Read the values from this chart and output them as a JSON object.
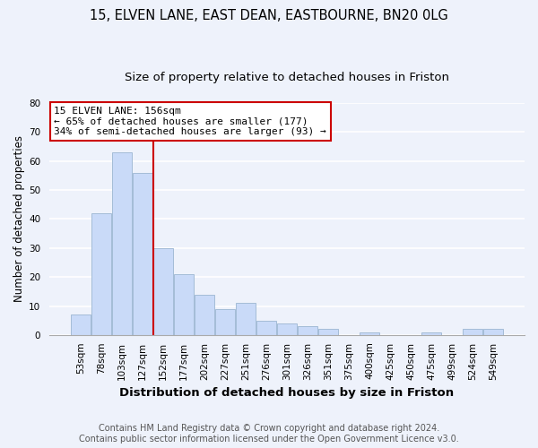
{
  "title1": "15, ELVEN LANE, EAST DEAN, EASTBOURNE, BN20 0LG",
  "title2": "Size of property relative to detached houses in Friston",
  "xlabel": "Distribution of detached houses by size in Friston",
  "ylabel": "Number of detached properties",
  "categories": [
    "53sqm",
    "78sqm",
    "103sqm",
    "127sqm",
    "152sqm",
    "177sqm",
    "202sqm",
    "227sqm",
    "251sqm",
    "276sqm",
    "301sqm",
    "326sqm",
    "351sqm",
    "375sqm",
    "400sqm",
    "425sqm",
    "450sqm",
    "475sqm",
    "499sqm",
    "524sqm",
    "549sqm"
  ],
  "values": [
    7,
    42,
    63,
    56,
    30,
    21,
    14,
    9,
    11,
    5,
    4,
    3,
    2,
    0,
    1,
    0,
    0,
    1,
    0,
    2,
    2
  ],
  "bar_color": "#c9daf8",
  "bar_edge_color": "#a4bcd6",
  "highlight_line_color": "#cc0000",
  "highlight_line_index": 3.5,
  "annotation_line1": "15 ELVEN LANE: 156sqm",
  "annotation_line2": "← 65% of detached houses are smaller (177)",
  "annotation_line3": "34% of semi-detached houses are larger (93) →",
  "annotation_box_facecolor": "#ffffff",
  "annotation_box_edgecolor": "#cc0000",
  "ylim": [
    0,
    80
  ],
  "yticks": [
    0,
    10,
    20,
    30,
    40,
    50,
    60,
    70,
    80
  ],
  "background_color": "#eef2fb",
  "grid_color": "#ffffff",
  "title1_fontsize": 10.5,
  "title2_fontsize": 9.5,
  "xlabel_fontsize": 9.5,
  "ylabel_fontsize": 8.5,
  "tick_fontsize": 7.5,
  "annotation_fontsize": 8.0,
  "footer_fontsize": 7.0,
  "footer_line1": "Contains HM Land Registry data © Crown copyright and database right 2024.",
  "footer_line2": "Contains public sector information licensed under the Open Government Licence v3.0."
}
